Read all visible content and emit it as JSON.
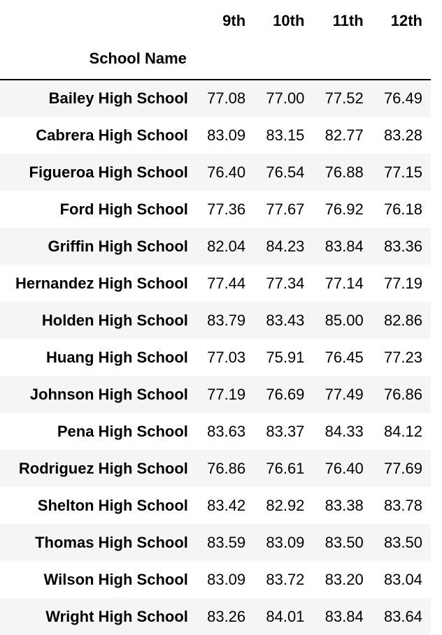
{
  "table": {
    "index_name": "School Name",
    "columns": [
      "9th",
      "10th",
      "11th",
      "12th"
    ],
    "rows": [
      {
        "school": "Bailey High School",
        "values": [
          "77.08",
          "77.00",
          "77.52",
          "76.49"
        ]
      },
      {
        "school": "Cabrera High School",
        "values": [
          "83.09",
          "83.15",
          "82.77",
          "83.28"
        ]
      },
      {
        "school": "Figueroa High School",
        "values": [
          "76.40",
          "76.54",
          "76.88",
          "77.15"
        ]
      },
      {
        "school": "Ford High School",
        "values": [
          "77.36",
          "77.67",
          "76.92",
          "76.18"
        ]
      },
      {
        "school": "Griffin High School",
        "values": [
          "82.04",
          "84.23",
          "83.84",
          "83.36"
        ]
      },
      {
        "school": "Hernandez High School",
        "values": [
          "77.44",
          "77.34",
          "77.14",
          "77.19"
        ]
      },
      {
        "school": "Holden High School",
        "values": [
          "83.79",
          "83.43",
          "85.00",
          "82.86"
        ]
      },
      {
        "school": "Huang High School",
        "values": [
          "77.03",
          "75.91",
          "76.45",
          "77.23"
        ]
      },
      {
        "school": "Johnson High School",
        "values": [
          "77.19",
          "76.69",
          "77.49",
          "76.86"
        ]
      },
      {
        "school": "Pena High School",
        "values": [
          "83.63",
          "83.37",
          "84.33",
          "84.12"
        ]
      },
      {
        "school": "Rodriguez High School",
        "values": [
          "76.86",
          "76.61",
          "76.40",
          "77.69"
        ]
      },
      {
        "school": "Shelton High School",
        "values": [
          "83.42",
          "82.92",
          "83.38",
          "83.78"
        ]
      },
      {
        "school": "Thomas High School",
        "values": [
          "83.59",
          "83.09",
          "83.50",
          "83.50"
        ]
      },
      {
        "school": "Wilson High School",
        "values": [
          "83.09",
          "83.72",
          "83.20",
          "83.04"
        ]
      },
      {
        "school": "Wright High School",
        "values": [
          "83.26",
          "84.01",
          "83.84",
          "83.64"
        ]
      }
    ]
  }
}
